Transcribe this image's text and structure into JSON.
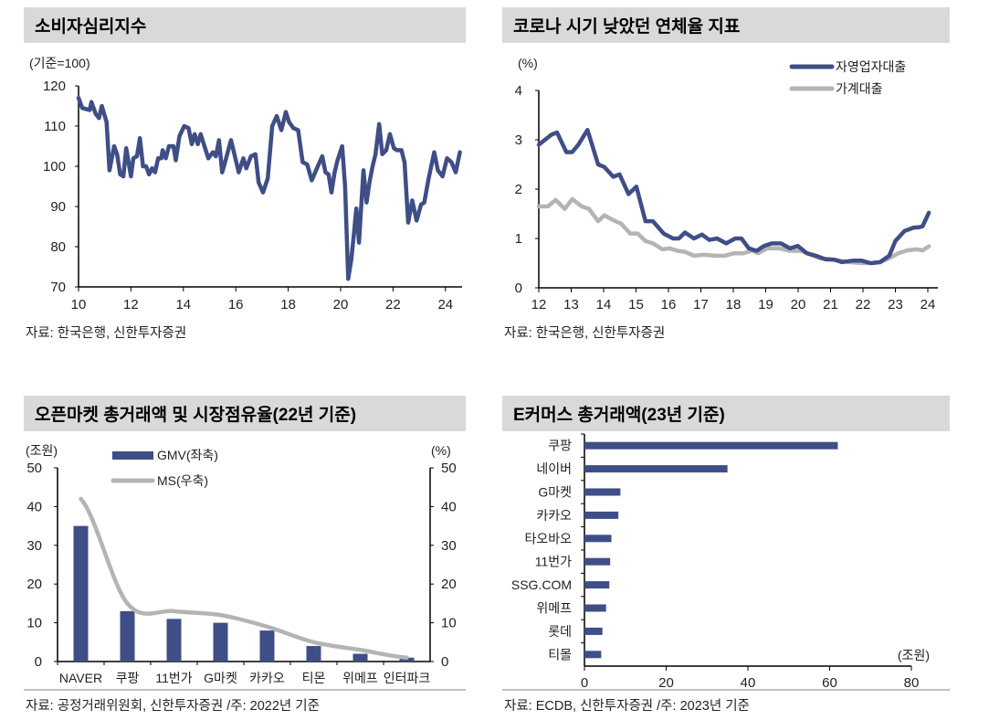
{
  "colors": {
    "navy": "#3f4e86",
    "gray": "#b4b4b4",
    "title_bg": "#d9d9d9",
    "axis": "#000000"
  },
  "chart_data": [
    {
      "type": "line",
      "title": "소비자심리지수",
      "ylabel": "(기준=100)",
      "source": "자료: 한국은행, 신한투자증권",
      "xlim": [
        10,
        24.6
      ],
      "ylim": [
        70,
        120
      ],
      "xticks": [
        10,
        12,
        14,
        16,
        18,
        20,
        22,
        24
      ],
      "yticks": [
        70,
        80,
        90,
        100,
        110,
        120
      ],
      "series": [
        {
          "x": [
            10,
            10.14,
            10.43,
            10.49,
            10.66,
            10.78,
            10.89,
            11.07,
            11.18,
            11.36,
            11.47,
            11.59,
            11.71,
            11.82,
            12.0,
            12.09,
            12.23,
            12.34,
            12.46,
            12.58,
            12.69,
            12.81,
            12.92,
            13.04,
            13.16,
            13.21,
            13.33,
            13.45,
            13.62,
            13.71,
            13.85,
            14.03,
            14.2,
            14.32,
            14.43,
            14.55,
            14.66,
            14.95,
            15.13,
            15.24,
            15.36,
            15.48,
            15.59,
            15.82,
            16.11,
            16.29,
            16.4,
            16.58,
            16.75,
            16.87,
            17.04,
            17.22,
            17.39,
            17.56,
            17.74,
            17.91,
            18.03,
            18.2,
            18.38,
            18.55,
            18.72,
            18.9,
            19.13,
            19.3,
            19.42,
            19.54,
            19.65,
            19.77,
            19.88,
            20.06,
            20.17,
            20.29,
            20.41,
            20.52,
            20.6,
            20.7,
            20.87,
            20.99,
            21.1,
            21.22,
            21.33,
            21.47,
            21.59,
            21.74,
            21.88,
            22.03,
            22.15,
            22.32,
            22.44,
            22.58,
            22.73,
            22.9,
            23.07,
            23.19,
            23.36,
            23.57,
            23.71,
            23.89,
            24.06,
            24.23,
            24.39,
            24.55
          ],
          "y": [
            117,
            114.5,
            114,
            116,
            113,
            112,
            115,
            111,
            99,
            105,
            103,
            98,
            97.5,
            104.5,
            97.5,
            102,
            102.5,
            107,
            100,
            100,
            98,
            99.5,
            98.5,
            102,
            102,
            104,
            102,
            105,
            105,
            101.5,
            107.5,
            110,
            109.5,
            105.5,
            108,
            105.5,
            108,
            102,
            103.5,
            102.5,
            106.5,
            98.5,
            101,
            106.5,
            98.5,
            102,
            99.5,
            102.5,
            103,
            96,
            93.5,
            97,
            110,
            112.5,
            109,
            113.5,
            111,
            109.5,
            109,
            101,
            100.5,
            96.5,
            100,
            102.5,
            98.5,
            98,
            93.5,
            98.5,
            101.5,
            105,
            95,
            72,
            77,
            84,
            89.5,
            81,
            99,
            91,
            96,
            100,
            103,
            110.5,
            103,
            104,
            108,
            104.5,
            104,
            104,
            101,
            86,
            91.5,
            86.5,
            90.5,
            91,
            97,
            103.5,
            99,
            97.5,
            102,
            101,
            98.5,
            103.5
          ]
        }
      ]
    },
    {
      "type": "line",
      "title": "코로나 시기 낮았던 연체율 지표",
      "ylabel": "(%)",
      "source": "자료: 한국은행, 신한투자증권",
      "xlim": [
        12,
        24.3
      ],
      "ylim": [
        0,
        4
      ],
      "xticks": [
        12,
        13,
        14,
        15,
        16,
        17,
        18,
        19,
        20,
        21,
        22,
        23,
        24
      ],
      "yticks": [
        0,
        1,
        2,
        3,
        4
      ],
      "legend": "top-right",
      "series": [
        {
          "name": "자영업자대출",
          "x": [
            12,
            12.38,
            12.56,
            12.85,
            13.03,
            13.22,
            13.5,
            13.83,
            14.02,
            14.3,
            14.49,
            14.77,
            15.01,
            15.29,
            15.52,
            15.85,
            16.14,
            16.32,
            16.51,
            16.79,
            17.03,
            17.26,
            17.5,
            17.78,
            18.06,
            18.25,
            18.48,
            18.72,
            18.95,
            19.19,
            19.47,
            19.75,
            19.99,
            20.27,
            20.55,
            20.83,
            21.12,
            21.35,
            21.68,
            21.96,
            22.24,
            22.53,
            22.81,
            23.0,
            23.28,
            23.56,
            23.75,
            23.84,
            24.03
          ],
          "y": [
            2.9,
            3.1,
            3.15,
            2.75,
            2.75,
            2.9,
            3.2,
            2.5,
            2.45,
            2.25,
            2.3,
            1.9,
            2.05,
            1.35,
            1.35,
            1.1,
            1.0,
            1.0,
            1.12,
            1.0,
            1.08,
            0.97,
            1.0,
            0.9,
            1.0,
            1.0,
            0.8,
            0.75,
            0.85,
            0.9,
            0.9,
            0.8,
            0.85,
            0.7,
            0.65,
            0.58,
            0.57,
            0.52,
            0.55,
            0.55,
            0.5,
            0.52,
            0.65,
            0.95,
            1.15,
            1.22,
            1.23,
            1.25,
            1.52
          ]
        },
        {
          "name": "가계대출",
          "x": [
            12,
            12.28,
            12.52,
            12.8,
            13.03,
            13.32,
            13.55,
            13.83,
            14.02,
            14.3,
            14.54,
            14.82,
            15.05,
            15.29,
            15.52,
            15.81,
            16.04,
            16.28,
            16.51,
            16.79,
            17.08,
            17.45,
            17.73,
            18.02,
            18.3,
            18.58,
            18.77,
            19.05,
            19.42,
            19.75,
            20.08,
            20.36,
            20.65,
            21.02,
            21.3,
            21.59,
            21.96,
            22.24,
            22.53,
            22.81,
            23.09,
            23.37,
            23.65,
            23.84,
            24.03
          ],
          "y": [
            1.65,
            1.65,
            1.78,
            1.6,
            1.8,
            1.65,
            1.6,
            1.35,
            1.47,
            1.37,
            1.3,
            1.1,
            1.1,
            0.95,
            0.9,
            0.78,
            0.8,
            0.75,
            0.73,
            0.65,
            0.67,
            0.65,
            0.65,
            0.7,
            0.7,
            0.75,
            0.7,
            0.8,
            0.8,
            0.75,
            0.75,
            0.68,
            0.6,
            0.58,
            0.55,
            0.52,
            0.5,
            0.5,
            0.52,
            0.6,
            0.7,
            0.76,
            0.78,
            0.76,
            0.84
          ]
        }
      ]
    },
    {
      "type": "bar",
      "title": "오픈마켓 총거래액 및 시장점유율(22년 기준)",
      "ylabel": "(조원)",
      "y2label": "(%)",
      "source": "자료: 공정거래위원회, 신한투자증권 /주: 2022년 기준",
      "ylim": [
        0,
        50
      ],
      "y2lim": [
        0,
        50
      ],
      "yticks": [
        0,
        10,
        20,
        30,
        40,
        50
      ],
      "legend": "top-left",
      "categories": [
        "NAVER",
        "쿠팡",
        "11번가",
        "G마켓",
        "카카오",
        "티몬",
        "위메프",
        "인터파크"
      ],
      "series": [
        {
          "name": "GMV(좌축)",
          "type": "bar",
          "values": [
            35,
            13,
            11,
            10,
            8,
            4,
            2,
            1
          ]
        },
        {
          "name": "MS(우축)",
          "type": "line",
          "values": [
            42,
            15,
            13,
            12,
            9,
            5,
            3,
            1
          ]
        }
      ]
    },
    {
      "type": "bar",
      "orientation": "horizontal",
      "title": "E커머스 총거래액(23년 기준)",
      "xlabel": "(조원)",
      "source": "자료: ECDB, 신한투자증권 /주: 2023년 기준",
      "xlim": [
        0,
        80
      ],
      "xticks": [
        0,
        20,
        40,
        60,
        80
      ],
      "categories": [
        "쿠팡",
        "네이버",
        "G마켓",
        "카카오",
        "타오바오",
        "11번가",
        "SSG.COM",
        "위메프",
        "롯데",
        "티몰"
      ],
      "values": [
        62,
        35,
        8.8,
        8.3,
        6.6,
        6.3,
        6.1,
        5.3,
        4.4,
        4.1
      ]
    }
  ]
}
